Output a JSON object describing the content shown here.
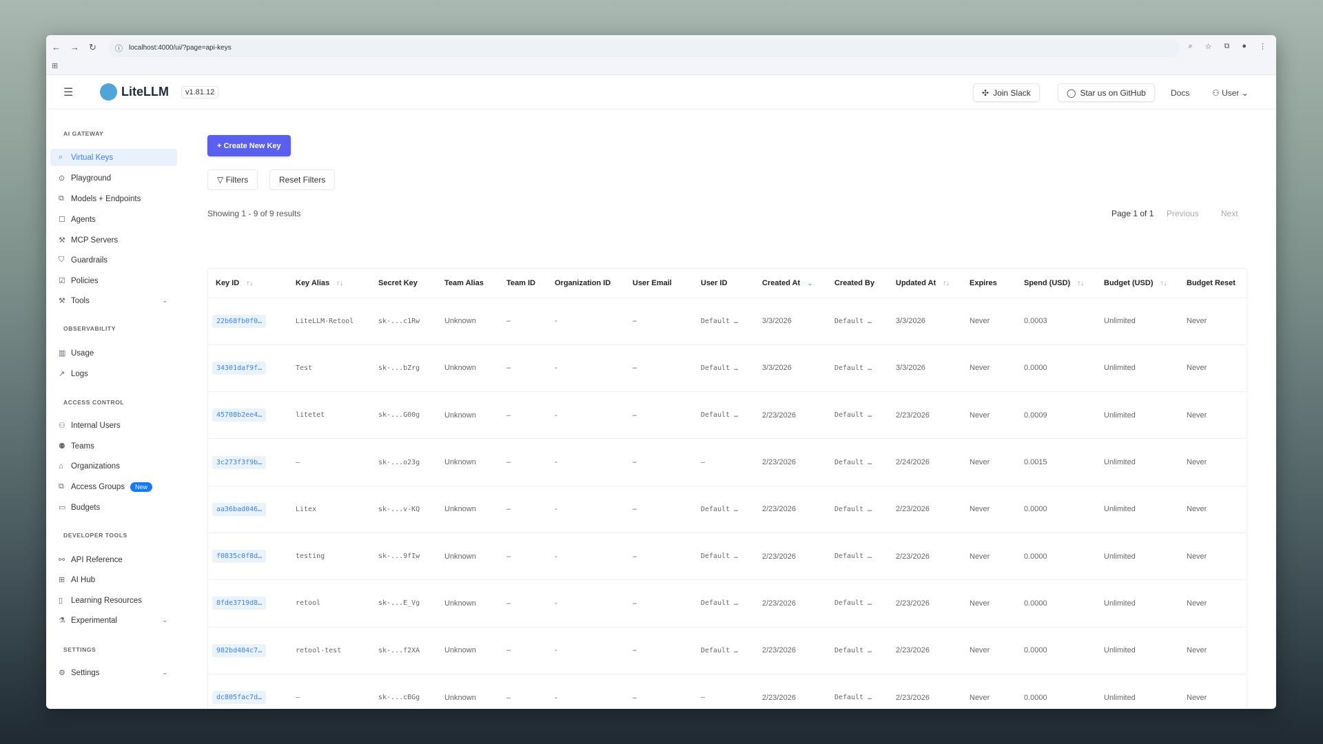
{
  "browser": {
    "url": "localhost:4000/ui/?page=api-keys"
  },
  "header": {
    "brand": "LiteLLM",
    "version": "v1.81.12",
    "join_slack": "Join Slack",
    "github": "Star us on GitHub",
    "docs": "Docs",
    "user": "User"
  },
  "sidebar": {
    "sections": [
      {
        "title": "AI GATEWAY",
        "items": [
          {
            "label": "Virtual Keys",
            "icon": "key-search-icon",
            "active": true
          },
          {
            "label": "Playground",
            "icon": "play-circle-icon"
          },
          {
            "label": "Models + Endpoints",
            "icon": "blocks-icon"
          },
          {
            "label": "Agents",
            "icon": "robot-icon"
          },
          {
            "label": "MCP Servers",
            "icon": "tool-icon"
          },
          {
            "label": "Guardrails",
            "icon": "shield-icon"
          },
          {
            "label": "Policies",
            "icon": "policy-icon"
          },
          {
            "label": "Tools",
            "icon": "wrench-icon",
            "expandable": true
          }
        ]
      },
      {
        "title": "OBSERVABILITY",
        "items": [
          {
            "label": "Usage",
            "icon": "bar-chart-icon"
          },
          {
            "label": "Logs",
            "icon": "line-chart-icon"
          }
        ]
      },
      {
        "title": "ACCESS CONTROL",
        "items": [
          {
            "label": "Internal Users",
            "icon": "user-icon"
          },
          {
            "label": "Teams",
            "icon": "team-icon"
          },
          {
            "label": "Organizations",
            "icon": "bank-icon"
          },
          {
            "label": "Access Groups",
            "icon": "group-icon",
            "badge": "New"
          },
          {
            "label": "Budgets",
            "icon": "wallet-icon"
          }
        ]
      },
      {
        "title": "DEVELOPER TOOLS",
        "items": [
          {
            "label": "API Reference",
            "icon": "api-icon"
          },
          {
            "label": "AI Hub",
            "icon": "grid-icon"
          },
          {
            "label": "Learning Resources",
            "icon": "book-icon"
          },
          {
            "label": "Experimental",
            "icon": "flask-icon",
            "expandable": true
          }
        ]
      },
      {
        "title": "SETTINGS",
        "items": [
          {
            "label": "Settings",
            "icon": "gear-icon",
            "expandable": true
          }
        ]
      }
    ]
  },
  "main": {
    "create_label": "+ Create New Key",
    "filters_label": "Filters",
    "reset_label": "Reset Filters",
    "showing": "Showing 1 - 9 of 9 results",
    "page": "Page 1 of 1",
    "previous": "Previous",
    "next": "Next",
    "columns": [
      "Key ID",
      "Key Alias",
      "Secret Key",
      "Team Alias",
      "Team ID",
      "Organization ID",
      "User Email",
      "User ID",
      "Created At",
      "Created By",
      "Updated At",
      "Expires",
      "Spend (USD)",
      "Budget (USD)",
      "Budget Reset"
    ],
    "rows": [
      [
        "22b68fb0f0…",
        "LiteLLM-Retool",
        "sk-...c1Rw",
        "Unknown",
        "–",
        "-",
        "–",
        "Default …",
        "3/3/2026",
        "Default …",
        "3/3/2026",
        "Never",
        "0.0003",
        "Unlimited",
        "Never"
      ],
      [
        "34301daf9f…",
        "Test",
        "sk-...bZrg",
        "Unknown",
        "–",
        "-",
        "–",
        "Default …",
        "3/3/2026",
        "Default …",
        "3/3/2026",
        "Never",
        "0.0000",
        "Unlimited",
        "Never"
      ],
      [
        "45708b2ee4…",
        "litetet",
        "sk-...G00g",
        "Unknown",
        "–",
        "-",
        "–",
        "Default …",
        "2/23/2026",
        "Default …",
        "2/23/2026",
        "Never",
        "0.0009",
        "Unlimited",
        "Never"
      ],
      [
        "3c273f3f9b…",
        "–",
        "sk-...o23g",
        "Unknown",
        "–",
        "-",
        "–",
        "–",
        "2/23/2026",
        "Default …",
        "2/24/2026",
        "Never",
        "0.0015",
        "Unlimited",
        "Never"
      ],
      [
        "aa36bad046…",
        "Litex",
        "sk-...v-KQ",
        "Unknown",
        "–",
        "-",
        "–",
        "Default …",
        "2/23/2026",
        "Default …",
        "2/23/2026",
        "Never",
        "0.0000",
        "Unlimited",
        "Never"
      ],
      [
        "f0835c0f8d…",
        "testing",
        "sk-...9fIw",
        "Unknown",
        "–",
        "-",
        "–",
        "Default …",
        "2/23/2026",
        "Default …",
        "2/23/2026",
        "Never",
        "0.0000",
        "Unlimited",
        "Never"
      ],
      [
        "8fde3719d8…",
        "retool",
        "sk-...E_Vg",
        "Unknown",
        "–",
        "-",
        "–",
        "Default …",
        "2/23/2026",
        "Default …",
        "2/23/2026",
        "Never",
        "0.0000",
        "Unlimited",
        "Never"
      ],
      [
        "982bd484c7…",
        "retool-test",
        "sk-...f2XA",
        "Unknown",
        "–",
        "-",
        "–",
        "Default …",
        "2/23/2026",
        "Default …",
        "2/23/2026",
        "Never",
        "0.0000",
        "Unlimited",
        "Never"
      ],
      [
        "dc805fac7d…",
        "–",
        "sk-...cBGg",
        "Unknown",
        "–",
        "-",
        "–",
        "–",
        "2/23/2026",
        "Default …",
        "2/23/2026",
        "Never",
        "0.0000",
        "Unlimited",
        "Never"
      ]
    ]
  },
  "colors": {
    "accent": "#5b5fef",
    "link": "#3b82f6",
    "active_bg": "#e8f1fc",
    "badge": "#1677ff"
  }
}
